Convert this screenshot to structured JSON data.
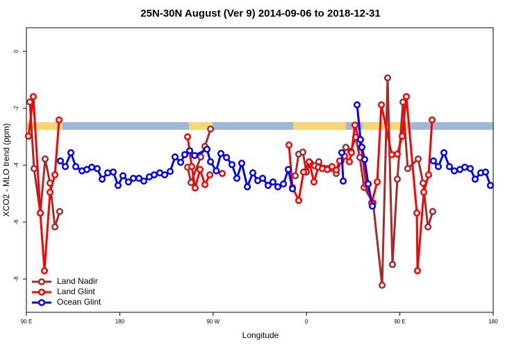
{
  "chart_data": {
    "type": "line",
    "title": "25N-30N August (Ver 9)   2014-09-06 to 2018-12-31",
    "xlabel": "Longitude",
    "ylabel": "XCO2 - MLO trend (ppm)",
    "xlim": [
      90,
      540
    ],
    "ylim": [
      -9.17,
      0.83
    ],
    "xticks": [
      {
        "value": 90,
        "label": "90 E"
      },
      {
        "value": 180,
        "label": "180"
      },
      {
        "value": 270,
        "label": "90 W"
      },
      {
        "value": 360,
        "label": "0"
      },
      {
        "value": 450,
        "label": "90 E"
      },
      {
        "value": 540,
        "label": "180"
      }
    ],
    "yticks": [
      0,
      -2,
      -4,
      -6,
      -8
    ],
    "legend": "bottom-left",
    "series": [
      {
        "name": "Land Nadir",
        "color": "#a52a2a",
        "x": [
          93.3,
          97.4,
          103.4,
          108.1,
          112.8,
          117.5,
          122.1,
          null,
          245.4,
          248.7,
          258.1,
          262.1,
          267.5,
          null,
          349.2,
          352.5,
          356.5,
          359.9,
          363.9,
          367.9,
          371.9,
          376.6,
          380.6,
          384.6,
          388.7,
          393.4,
          398.0,
          402.7,
          407.4,
          411.4,
          415.5,
          424.2,
          432.9,
          438.2,
          442.9,
          447.6,
          453.0,
          457.6,
          467.7,
          472.4,
          477.1,
          481.7
        ],
        "values": [
          -1.78,
          -4.12,
          -5.68,
          -3.78,
          -4.63,
          -6.17,
          -5.63,
          null,
          -4.07,
          -4.61,
          -3.71,
          -3.34,
          -2.73,
          null,
          -4.37,
          -3.61,
          -3.54,
          -4.24,
          -3.93,
          -4.02,
          -3.88,
          -4.1,
          -4.12,
          -4.12,
          -4.29,
          -3.85,
          -3.37,
          -3.51,
          -3.02,
          -3.73,
          -4.78,
          -5.32,
          -8.22,
          -0.93,
          -7.49,
          -4.49,
          -1.78,
          -4.12,
          -3.78,
          -4.63,
          -6.17,
          -5.63
        ]
      },
      {
        "name": "Land Glint",
        "color": "#ff0000",
        "x": [
          92.0,
          96.7,
          103.4,
          107.4,
          112.8,
          117.5,
          121.5,
          null,
          245.4,
          249.4,
          252.7,
          257.4,
          262.1,
          266.8,
          null,
          278.8,
          null,
          343.1,
          346.5,
          352.5,
          357.2,
          362.6,
          367.2,
          371.3,
          375.3,
          380.0,
          384.6,
          388.7,
          392.0,
          396.7,
          401.4,
          403.4,
          406.7,
          412.8,
          417.5,
          422.8,
          428.2,
          432.2,
          442.2,
          447.6,
          452.3,
          456.3,
          466.4,
          467.0,
          473.1,
          477.7,
          481.1
        ],
        "values": [
          -2.98,
          -1.59,
          -5.68,
          -7.71,
          -4.95,
          -4.34,
          -2.41,
          null,
          -3.0,
          -4.05,
          -4.8,
          -4.15,
          -4.68,
          -4.34,
          null,
          -4.29,
          null,
          -3.29,
          -4.78,
          -5.24,
          -4.24,
          -3.88,
          -4.59,
          -4.07,
          -4.12,
          -4.15,
          -4.05,
          -4.17,
          -3.85,
          -3.68,
          -3.88,
          -3.56,
          -2.59,
          -3.37,
          -4.68,
          -5.32,
          -4.59,
          -1.88,
          -3.63,
          -3.61,
          -2.98,
          -1.59,
          -5.68,
          -7.71,
          -4.95,
          -4.34,
          -2.41
        ]
      },
      {
        "name": "Ocean Glint",
        "color": "#0000ff",
        "x": [
          122.8,
          127.5,
          132.9,
          137.6,
          143.6,
          148.3,
          153.0,
          158.3,
          163.0,
          168.4,
          173.7,
          178.4,
          183.1,
          188.4,
          193.1,
          198.5,
          203.2,
          208.5,
          213.2,
          218.6,
          223.3,
          228.6,
          233.3,
          238.7,
          242.7,
          247.4,
          252.1,
          264.1,
          267.5,
          273.0,
          277.5,
          282.9,
          288.2,
          292.9,
          297.6,
          303.0,
          308.3,
          313.0,
          317.7,
          323.0,
          327.7,
          332.4,
          337.8,
          342.5,
          346.5,
          null,
          394.0,
          395.4,
          null,
          408.8,
          412.1,
          413.4,
          416.1,
          419.5,
          423.5,
          null,
          482.4,
          487.1,
          492.5,
          497.8,
          502.5,
          507.9,
          512.6,
          517.9,
          522.6,
          528.0,
          532.6,
          537.3
        ],
        "values": [
          -3.85,
          -4.05,
          -3.56,
          -4.05,
          -4.2,
          -4.15,
          -4.07,
          -4.12,
          -4.49,
          -4.27,
          -4.24,
          -4.71,
          -4.37,
          -4.59,
          -4.46,
          -4.46,
          -4.56,
          -4.41,
          -4.34,
          -4.27,
          -4.34,
          -4.22,
          -3.71,
          -3.9,
          -3.63,
          -3.49,
          -3.66,
          -3.44,
          -3.88,
          -4.2,
          -3.59,
          -3.73,
          -3.98,
          -4.46,
          -3.93,
          -4.76,
          -4.27,
          -4.54,
          -4.46,
          -4.71,
          -4.59,
          -4.76,
          -4.66,
          -4.15,
          -4.83,
          null,
          -3.56,
          -4.56,
          null,
          -1.88,
          -3.1,
          -3.37,
          -3.8,
          -4.66,
          -5.44,
          null,
          -3.85,
          -4.05,
          -3.56,
          -4.05,
          -4.2,
          -4.15,
          -4.07,
          -4.12,
          -4.49,
          -4.27,
          -4.24,
          -4.71
        ]
      }
    ]
  }
}
